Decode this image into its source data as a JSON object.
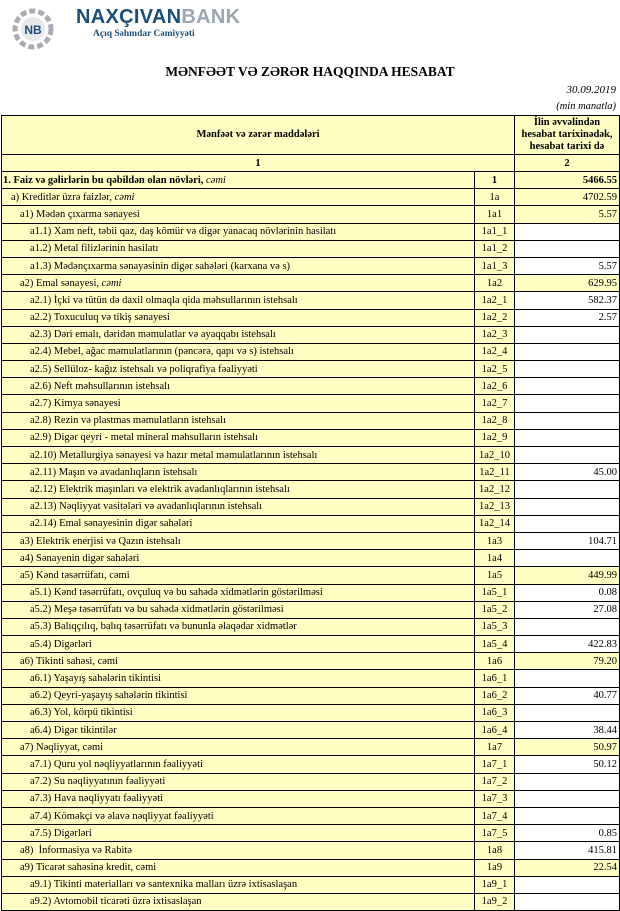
{
  "header": {
    "brand_main": "NAXÇIVAN",
    "brand_accent": "BANK",
    "tagline": "Açıq Səhmdar Cəmiyyəti",
    "logo_letters": "NB"
  },
  "title": "MƏNFƏƏT VƏ ZƏRƏR HAQQINDA HESABAT",
  "date": "30.09.2019",
  "unit": "(min manatla)",
  "table": {
    "col1_header": "Mənfəət və zərər maddələri",
    "col2_header": "İlin əvvəlindən hesabat tarixinədək, hesabat tarixi də",
    "col1_num": "1",
    "col2_num": "2",
    "rows": [
      {
        "label": "1. Faiz və gəlirlərin bu qəbildən olan növləri, ",
        "suffix": "cəmi",
        "code": "1",
        "value": "5466.55",
        "level": 0,
        "total": true,
        "bold": true
      },
      {
        "label": "a) Kreditlər üzrə faizlər, ",
        "suffix": "cəmi",
        "code": "1a",
        "value": "4702.59",
        "level": 1,
        "total": true
      },
      {
        "label": "a1) Mədən çıxarma sənayesi",
        "code": "1a1",
        "value": "5.57",
        "level": 2,
        "total": true
      },
      {
        "label": "a1.1) Xam neft, təbii qaz, daş kömür və digər yanacaq növlərinin hasilatı",
        "code": "1a1_1",
        "value": "",
        "level": 3
      },
      {
        "label": "a1.2) Metal filizlərinin hasilatı",
        "code": "1a1_2",
        "value": "",
        "level": 3
      },
      {
        "label": "a1.3) Mədənçıxarma sənayəsinin digər sahələri (karxana və s)",
        "code": "1a1_3",
        "value": "5.57",
        "level": 3
      },
      {
        "label": "a2) Emal sənayesi, ",
        "suffix": "cəmi",
        "code": "1a2",
        "value": "629.95",
        "level": 2,
        "total": true
      },
      {
        "label": "a2.1) İçki və tütün də daxil olmaqla qida məhsullarının istehsalı",
        "code": "1a2_1",
        "value": "582.37",
        "level": 3
      },
      {
        "label": "a2.2) Toxuculuq və tikiş sənayesi",
        "code": "1a2_2",
        "value": "2.57",
        "level": 3
      },
      {
        "label": "a2.3) Dəri emalı, dəridən məmulatlar və ayaqqabı istehsalı",
        "code": "1a2_3",
        "value": "",
        "level": 3
      },
      {
        "label": "a2.4) Mebel, ağac məmulatlarının (pəncərə, qapı və s) istehsalı",
        "code": "1a2_4",
        "value": "",
        "level": 3
      },
      {
        "label": "a2.5) Sellüloz- kağız istehsalı və poliqrafiya fəaliyyəti",
        "code": "1a2_5",
        "value": "",
        "level": 3
      },
      {
        "label": "a2.6) Neft məhsullarının istehsalı",
        "code": "1a2_6",
        "value": "",
        "level": 3
      },
      {
        "label": "a2.7) Kimya sənayesi",
        "code": "1a2_7",
        "value": "",
        "level": 3
      },
      {
        "label": "a2.8) Rezin və plastmas məmulatların istehsalı",
        "code": "1a2_8",
        "value": "",
        "level": 3
      },
      {
        "label": "a2.9) Digər qeyri - metal mineral məhsulların istehsalı",
        "code": "1a2_9",
        "value": "",
        "level": 3
      },
      {
        "label": "a2.10) Metallurgiya sənayesi və hazır metal məmulatlarının istehsalı",
        "code": "1a2_10",
        "value": "",
        "level": 3
      },
      {
        "label": "a2.11) Maşın və avadanlıqların istehsalı",
        "code": "1a2_11",
        "value": "45.00",
        "level": 3
      },
      {
        "label": "a2.12) Elektrik maşınları və elektrik avadanlıqlarının istehsalı",
        "code": "1a2_12",
        "value": "",
        "level": 3
      },
      {
        "label": "a2.13) Nəqliyyat vasitələri və avadanlıqlarının istehsalı",
        "code": "1a2_13",
        "value": "",
        "level": 3
      },
      {
        "label": "a2.14) Emal sənayesinin digər sahələri",
        "code": "1a2_14",
        "value": "",
        "level": 3
      },
      {
        "label": "a3) Elektrik enerjisi və Qazın istehsalı",
        "code": "1a3",
        "value": "104.71",
        "level": 2
      },
      {
        "label": "a4) Sənayenin digər sahələri",
        "code": "1a4",
        "value": "",
        "level": 2
      },
      {
        "label": "a5) Kənd təsərrüfatı, cəmi",
        "code": "1a5",
        "value": "449.99",
        "level": 2,
        "total": true
      },
      {
        "label": "a5.1) Kənd təsərrüfatı, ovçuluq və bu sahədə xidmətlərin göstərilməsi",
        "code": "1a5_1",
        "value": "0.08",
        "level": 3
      },
      {
        "label": "a5.2) Meşə təsərrüfatı və bu sahədə xidmətlərin göstərilməsi",
        "code": "1a5_2",
        "value": "27.08",
        "level": 3
      },
      {
        "label": "a5.3) Balıqçılıq, balıq təsərrüfatı və bununla əlaqədar xidmətlər",
        "code": "1a5_3",
        "value": "",
        "level": 3
      },
      {
        "label": "a5.4) Digərləri",
        "code": "1a5_4",
        "value": "422.83",
        "level": 3
      },
      {
        "label": "a6) Tikinti sahəsi, cəmi",
        "code": "1a6",
        "value": "79.20",
        "level": 2,
        "total": true
      },
      {
        "label": "a6.1) Yaşayış sahələrin tikintisi",
        "code": "1a6_1",
        "value": "",
        "level": 3
      },
      {
        "label": "a6.2) Qeyri-yaşayış sahələrin tikintisi",
        "code": "1a6_2",
        "value": "40.77",
        "level": 3
      },
      {
        "label": "a6.3) Yol, körpü tikintisi",
        "code": "1a6_3",
        "value": "",
        "level": 3
      },
      {
        "label": "a6.4) Digər tikintilər",
        "code": "1a6_4",
        "value": "38.44",
        "level": 3
      },
      {
        "label": "a7) Nəqliyyat, cəmi",
        "code": "1a7",
        "value": "50.97",
        "level": 2,
        "total": true
      },
      {
        "label": "a7.1) Quru yol nəqliyyatlarının fəaliyyəti",
        "code": "1a7_1",
        "value": "50.12",
        "level": 3
      },
      {
        "label": "a7.2) Su nəqliyyatının fəaliyyəti",
        "code": "1a7_2",
        "value": "",
        "level": 3
      },
      {
        "label": "a7.3) Hava nəqliyyatı fəaliyyəti",
        "code": "1a7_3",
        "value": "",
        "level": 3
      },
      {
        "label": "a7.4) Köməkçi və əlavə nəqliyyat fəaliyyəti",
        "code": "1a7_4",
        "value": "",
        "level": 3
      },
      {
        "label": "a7.5) Digərləri",
        "code": "1a7_5",
        "value": "0.85",
        "level": 3
      },
      {
        "label": "a8)  İnformasiya və Rabitə",
        "code": "1a8",
        "value": "415.81",
        "level": 2
      },
      {
        "label": "a9) Ticarət sahəsinə kredit, cəmi",
        "code": "1a9",
        "value": "22.54",
        "level": 2,
        "total": true
      },
      {
        "label": "a9.1) Tikinti materialları və santexnika malları üzrə ixtisaslaşan",
        "code": "1a9_1",
        "value": "",
        "level": 3
      },
      {
        "label": "a9.2) Avtomobil ticarəti üzrə ixtisaslaşan",
        "code": "1a9_2",
        "value": "",
        "level": 3
      }
    ]
  }
}
